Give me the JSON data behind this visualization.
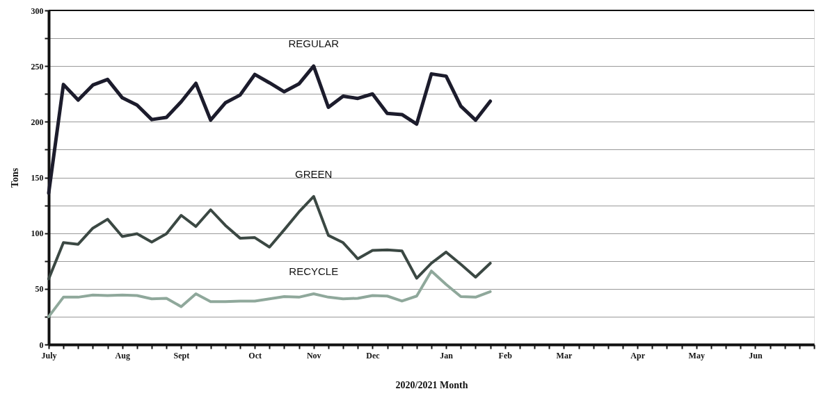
{
  "chart_data": {
    "type": "line",
    "xlabel": "2020/2021 Month",
    "ylabel": "Tons",
    "categories": [
      "July",
      null,
      null,
      null,
      null,
      "Aug",
      null,
      null,
      null,
      "Sept",
      null,
      null,
      null,
      null,
      "Oct",
      null,
      null,
      null,
      "Nov",
      null,
      null,
      null,
      "Dec",
      null,
      null,
      null,
      null,
      "Jan",
      null,
      null,
      null,
      "Feb",
      null,
      null,
      null,
      "Mar",
      null,
      null,
      null,
      null,
      "Apr",
      null,
      null,
      null,
      "May",
      null,
      null,
      null,
      "Jun",
      null,
      null,
      null,
      null
    ],
    "series": [
      {
        "name": "REGULAR",
        "color": "#1c1c2c",
        "values": [
          136,
          233.5,
          219.5,
          233,
          238,
          221.5,
          215,
          202,
          204,
          218,
          234.5,
          201.5,
          217,
          224,
          242.5,
          235,
          227,
          234,
          250,
          213,
          223,
          221,
          225,
          207.5,
          206.5,
          198,
          243,
          241,
          214,
          201.5,
          218.5,
          null,
          null,
          null,
          null,
          null,
          null,
          null,
          null,
          null,
          null,
          null,
          null,
          null,
          null,
          null,
          null,
          null,
          null,
          null,
          null,
          null,
          null
        ]
      },
      {
        "name": "GREEN",
        "color": "#3b4843",
        "values": [
          59,
          91.5,
          90,
          104.5,
          112.5,
          97,
          99.5,
          92,
          99.5,
          116,
          106,
          121,
          107,
          95.5,
          96,
          87.5,
          103,
          119,
          133,
          98,
          91.5,
          77,
          84.5,
          85,
          84,
          59.5,
          73,
          83,
          72,
          60.5,
          73,
          null,
          null,
          null,
          null,
          null,
          null,
          null,
          null,
          null,
          null,
          null,
          null,
          null,
          null,
          null,
          null,
          null,
          null,
          null,
          null,
          null,
          null
        ]
      },
      {
        "name": "RECYCLE",
        "color": "#8fa89b",
        "values": [
          25,
          42.5,
          42.5,
          44.5,
          44,
          44.5,
          44,
          41,
          41.5,
          34,
          45.5,
          38.5,
          38.5,
          39,
          39,
          41,
          43,
          42.5,
          45.5,
          42.5,
          41,
          41.5,
          44,
          43.5,
          39,
          43.5,
          66,
          54,
          43,
          42.5,
          47.5,
          null,
          null,
          null,
          null,
          null,
          null,
          null,
          null,
          null,
          null,
          null,
          null,
          null,
          null,
          null,
          null,
          null,
          null,
          null,
          null,
          null,
          null
        ]
      }
    ],
    "ylim": [
      0,
      300
    ],
    "yticks": [
      0,
      {
        "value": 25,
        "label": null
      },
      50,
      {
        "value": 75,
        "label": null
      },
      100,
      {
        "value": 125,
        "label": null
      },
      150,
      {
        "value": 175,
        "label": null
      },
      200,
      {
        "value": 225,
        "label": null
      },
      250,
      {
        "value": 275,
        "label": null
      },
      300
    ],
    "grid": "y",
    "marker": "none",
    "line_style": "solid"
  }
}
